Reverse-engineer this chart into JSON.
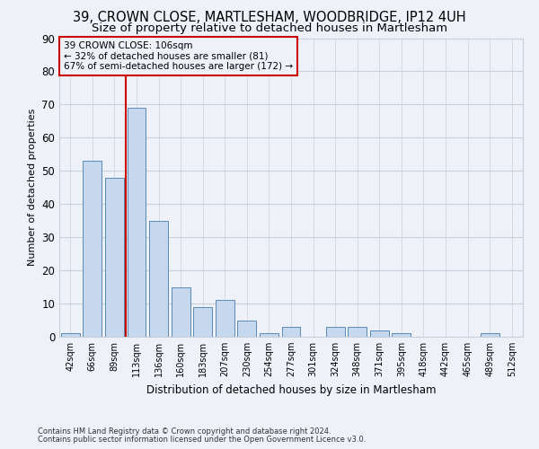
{
  "title_line1": "39, CROWN CLOSE, MARTLESHAM, WOODBRIDGE, IP12 4UH",
  "title_line2": "Size of property relative to detached houses in Martlesham",
  "xlabel": "Distribution of detached houses by size in Martlesham",
  "ylabel": "Number of detached properties",
  "bar_labels": [
    "42sqm",
    "66sqm",
    "89sqm",
    "113sqm",
    "136sqm",
    "160sqm",
    "183sqm",
    "207sqm",
    "230sqm",
    "254sqm",
    "277sqm",
    "301sqm",
    "324sqm",
    "348sqm",
    "371sqm",
    "395sqm",
    "418sqm",
    "442sqm",
    "465sqm",
    "489sqm",
    "512sqm"
  ],
  "bar_values": [
    1,
    53,
    48,
    69,
    35,
    15,
    9,
    11,
    5,
    1,
    3,
    0,
    3,
    3,
    2,
    1,
    0,
    0,
    0,
    1,
    0
  ],
  "bar_color": "#c5d8ed",
  "bar_edge_color": "#5a8ab5",
  "vline_color": "#cc0000",
  "annotation_box_text": "39 CROWN CLOSE: 106sqm\n← 32% of detached houses are smaller (81)\n67% of semi-detached houses are larger (172) →",
  "annotation_box_color": "#cc0000",
  "ylim": [
    0,
    90
  ],
  "yticks": [
    0,
    10,
    20,
    30,
    40,
    50,
    60,
    70,
    80,
    90
  ],
  "background_color": "#eef2f8",
  "grid_color": "#c8d0dc",
  "footer_line1": "Contains HM Land Registry data © Crown copyright and database right 2024.",
  "footer_line2": "Contains public sector information licensed under the Open Government Licence v3.0.",
  "title_fontsize": 10.5,
  "subtitle_fontsize": 9.5,
  "bar_width": 0.85,
  "vline_position": 2.5
}
